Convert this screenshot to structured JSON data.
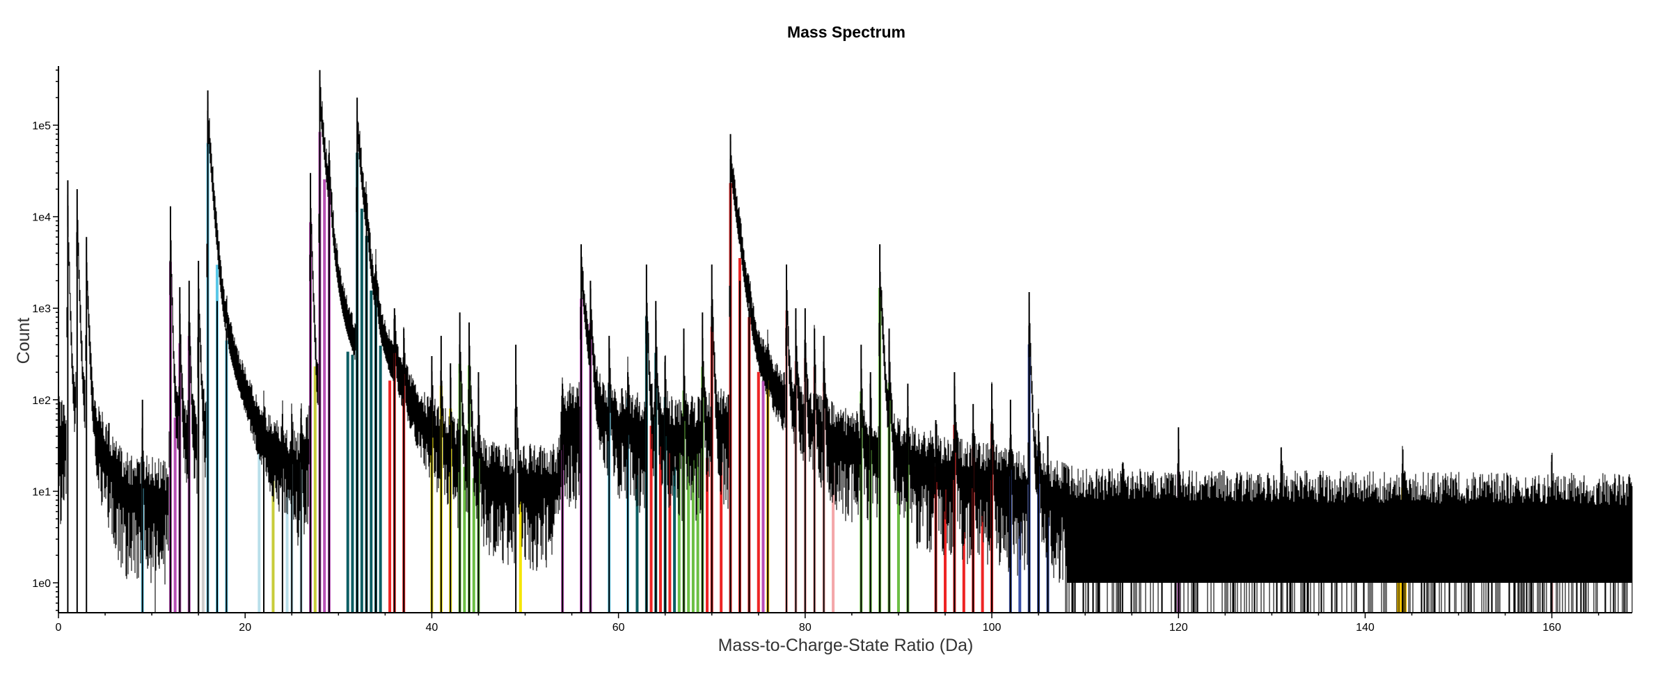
{
  "chart_data": {
    "type": "bar",
    "title": "Mass Spectrum",
    "xlabel": "Mass-to-Charge-State Ratio (Da)",
    "ylabel": "Count",
    "xlim": [
      0,
      168.6
    ],
    "ylim": [
      0.47,
      450000
    ],
    "yscale": "log",
    "xticks": [
      0,
      20,
      40,
      60,
      80,
      100,
      120,
      140,
      160
    ],
    "xtick_labels": [
      "0",
      "20",
      "40",
      "60",
      "80",
      "100",
      "120",
      "140",
      "160"
    ],
    "yticks": [
      1,
      10,
      100,
      1000,
      10000,
      100000
    ],
    "ytick_labels": [
      "1e0",
      "1e1",
      "1e2",
      "1e3",
      "1e4",
      "1e5"
    ],
    "grid": false,
    "background_counts": [
      [
        0,
        50
      ],
      [
        5,
        30
      ],
      [
        7,
        12
      ],
      [
        11.9,
        10
      ],
      [
        12,
        40
      ],
      [
        16,
        40
      ],
      [
        20,
        30
      ],
      [
        26,
        20
      ],
      [
        27,
        40
      ],
      [
        35,
        60
      ],
      [
        40,
        40
      ],
      [
        47,
        15
      ],
      [
        53.5,
        15
      ],
      [
        54,
        70
      ],
      [
        56,
        70
      ],
      [
        60,
        60
      ],
      [
        66,
        50
      ],
      [
        69,
        50
      ],
      [
        75,
        70
      ],
      [
        85,
        35
      ],
      [
        90,
        25
      ],
      [
        100,
        15
      ],
      [
        110,
        8
      ],
      [
        168.6,
        7
      ]
    ],
    "peaks": [
      [
        1,
        25000,
        0.4
      ],
      [
        2,
        20000,
        0.5
      ],
      [
        3,
        6000,
        0.6
      ],
      [
        9,
        100,
        0.2
      ],
      [
        12,
        13000,
        0.4
      ],
      [
        13,
        1700,
        0.4
      ],
      [
        14,
        2000,
        0.4
      ],
      [
        15,
        3300,
        0.5
      ],
      [
        16,
        240000,
        1.2
      ],
      [
        17,
        1200,
        0.3
      ],
      [
        18,
        600,
        0.4
      ],
      [
        22,
        60,
        0.3
      ],
      [
        24,
        70,
        0.3
      ],
      [
        25,
        70,
        0.3
      ],
      [
        26,
        80,
        0.3
      ],
      [
        27,
        30000,
        0.5
      ],
      [
        28,
        400000,
        1.5
      ],
      [
        29,
        50000,
        0.5
      ],
      [
        32,
        200000,
        1.5
      ],
      [
        33,
        15000,
        0.5
      ],
      [
        34,
        3000,
        0.5
      ],
      [
        36,
        1000,
        0.5
      ],
      [
        37,
        600,
        0.4
      ],
      [
        40,
        300,
        0.3
      ],
      [
        41,
        500,
        0.3
      ],
      [
        42,
        250,
        0.3
      ],
      [
        43,
        900,
        0.5
      ],
      [
        44,
        700,
        0.5
      ],
      [
        45,
        200,
        0.3
      ],
      [
        49,
        400,
        0.3
      ],
      [
        54,
        150,
        0.3
      ],
      [
        56,
        5000,
        1.5
      ],
      [
        57,
        2000,
        0.6
      ],
      [
        59,
        500,
        0.4
      ],
      [
        61,
        200,
        0.3
      ],
      [
        63,
        3000,
        0.5
      ],
      [
        64,
        1200,
        0.4
      ],
      [
        65,
        300,
        0.3
      ],
      [
        67,
        600,
        0.3
      ],
      [
        69,
        900,
        0.4
      ],
      [
        70,
        3000,
        0.5
      ],
      [
        72,
        80000,
        2.0
      ],
      [
        73,
        2000,
        0.5
      ],
      [
        74,
        1000,
        0.5
      ],
      [
        76,
        300,
        0.4
      ],
      [
        78,
        3000,
        0.5
      ],
      [
        79,
        1000,
        0.4
      ],
      [
        80,
        1000,
        0.4
      ],
      [
        81,
        600,
        0.4
      ],
      [
        82,
        500,
        0.4
      ],
      [
        86,
        400,
        0.4
      ],
      [
        87,
        200,
        0.3
      ],
      [
        88,
        5000,
        0.8
      ],
      [
        89,
        600,
        0.4
      ],
      [
        91,
        150,
        0.3
      ],
      [
        94,
        60,
        0.3
      ],
      [
        96,
        200,
        0.4
      ],
      [
        98,
        90,
        0.3
      ],
      [
        100,
        150,
        0.4
      ],
      [
        102,
        100,
        0.3
      ],
      [
        104,
        1500,
        0.6
      ],
      [
        105,
        70,
        0.3
      ],
      [
        106,
        40,
        0.3
      ],
      [
        114,
        20,
        0.3
      ],
      [
        120,
        50,
        0.3
      ],
      [
        131,
        30,
        0.3
      ],
      [
        144,
        20,
        1.0
      ],
      [
        160,
        25,
        0.3
      ]
    ],
    "ranged_ion_colors": {
      "cyan": "#5bc8e8",
      "lightcyan": "#b9dfea",
      "magenta": "#b84fb5",
      "gray": "#cccccc",
      "olive": "#c8cc3a",
      "teal": "#0c5e63",
      "red": "#ee2424",
      "yellow": "#f5e600",
      "green": "#6cbf43",
      "gold": "#f5c400",
      "pink": "#f4a7a9",
      "blue": "#3950a8"
    },
    "ranges": [
      [
        9,
        "cyan"
      ],
      [
        16,
        "cyan"
      ],
      [
        17,
        "cyan"
      ],
      [
        18,
        "cyan"
      ],
      [
        59,
        "cyan"
      ],
      [
        61,
        "cyan"
      ],
      [
        21.5,
        "lightcyan"
      ],
      [
        24.5,
        "lightcyan"
      ],
      [
        25,
        "lightcyan"
      ],
      [
        26,
        "lightcyan"
      ],
      [
        12,
        "magenta"
      ],
      [
        12.5,
        "magenta"
      ],
      [
        13,
        "magenta"
      ],
      [
        14,
        "magenta"
      ],
      [
        27,
        "magenta"
      ],
      [
        28,
        "magenta"
      ],
      [
        28.5,
        "magenta"
      ],
      [
        29,
        "magenta"
      ],
      [
        54,
        "magenta"
      ],
      [
        56,
        "magenta"
      ],
      [
        57,
        "magenta"
      ],
      [
        75.5,
        "magenta"
      ],
      [
        120,
        "magenta"
      ],
      [
        15,
        "gray"
      ],
      [
        15.5,
        "gray"
      ],
      [
        23,
        "olive"
      ],
      [
        27.5,
        "olive"
      ],
      [
        31,
        "teal"
      ],
      [
        31.5,
        "teal"
      ],
      [
        32,
        "teal"
      ],
      [
        32.5,
        "teal"
      ],
      [
        33,
        "teal"
      ],
      [
        33.5,
        "teal"
      ],
      [
        34,
        "teal"
      ],
      [
        34.5,
        "teal"
      ],
      [
        62,
        "teal"
      ],
      [
        63,
        "teal"
      ],
      [
        64,
        "teal"
      ],
      [
        65,
        "teal"
      ],
      [
        66,
        "teal"
      ],
      [
        35.5,
        "red"
      ],
      [
        36,
        "red"
      ],
      [
        37,
        "red"
      ],
      [
        63.5,
        "red"
      ],
      [
        64.5,
        "red"
      ],
      [
        65.5,
        "red"
      ],
      [
        69.5,
        "red"
      ],
      [
        70,
        "red"
      ],
      [
        71,
        "red"
      ],
      [
        72,
        "red"
      ],
      [
        73,
        "red"
      ],
      [
        74,
        "red"
      ],
      [
        75,
        "red"
      ],
      [
        94,
        "red"
      ],
      [
        95,
        "red"
      ],
      [
        96,
        "red"
      ],
      [
        97,
        "red"
      ],
      [
        98,
        "red"
      ],
      [
        99,
        "red"
      ],
      [
        100,
        "red"
      ],
      [
        40,
        "yellow"
      ],
      [
        41,
        "yellow"
      ],
      [
        42,
        "yellow"
      ],
      [
        49.5,
        "yellow"
      ],
      [
        43,
        "green"
      ],
      [
        43.5,
        "green"
      ],
      [
        44,
        "green"
      ],
      [
        44.5,
        "green"
      ],
      [
        45,
        "green"
      ],
      [
        66.5,
        "green"
      ],
      [
        67,
        "green"
      ],
      [
        67.5,
        "green"
      ],
      [
        68,
        "green"
      ],
      [
        68.5,
        "green"
      ],
      [
        69,
        "green"
      ],
      [
        86,
        "green"
      ],
      [
        87,
        "green"
      ],
      [
        88,
        "green"
      ],
      [
        89,
        "green"
      ],
      [
        90,
        "green"
      ],
      [
        91,
        "green"
      ],
      [
        76,
        "gold"
      ],
      [
        143.5,
        "gold"
      ],
      [
        143.8,
        "gold"
      ],
      [
        144,
        "gold"
      ],
      [
        144.3,
        "gold"
      ],
      [
        78,
        "pink"
      ],
      [
        79,
        "pink"
      ],
      [
        80,
        "pink"
      ],
      [
        81,
        "pink"
      ],
      [
        82,
        "pink"
      ],
      [
        83,
        "pink"
      ],
      [
        160,
        "pink"
      ],
      [
        102,
        "blue"
      ],
      [
        103,
        "blue"
      ],
      [
        104,
        "blue"
      ],
      [
        105,
        "blue"
      ],
      [
        106,
        "blue"
      ]
    ]
  }
}
